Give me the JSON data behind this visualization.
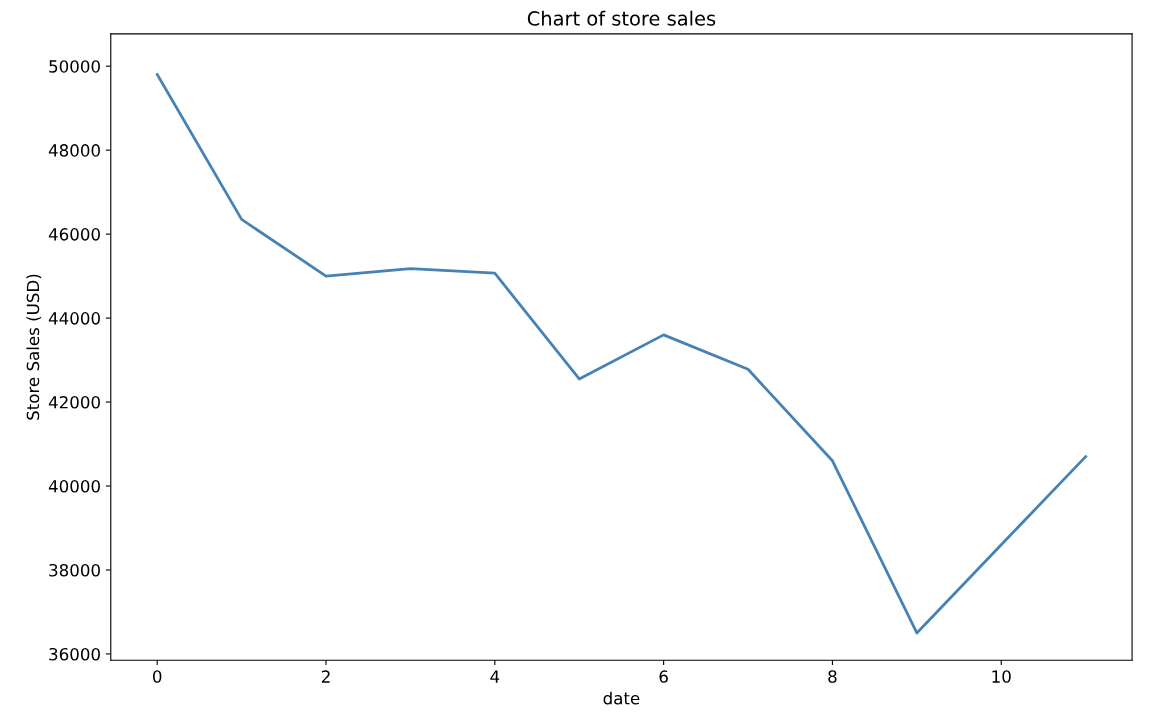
{
  "chart_data": {
    "type": "line",
    "title": "Chart of store sales",
    "xlabel": "date",
    "ylabel": "Store Sales (USD)",
    "x": [
      0,
      1,
      2,
      3,
      4,
      5,
      6,
      7,
      8,
      9,
      10,
      11
    ],
    "series": [
      {
        "color": "#4682b4",
        "values": [
          49800,
          46350,
          45000,
          45180,
          45070,
          42550,
          43600,
          42780,
          40600,
          36500,
          38600,
          40700
        ]
      }
    ],
    "xlim": [
      -0.55,
      11.55
    ],
    "xticks": [
      0,
      2,
      4,
      6,
      8,
      10
    ],
    "ylim": [
      35850,
      50770
    ],
    "yticks": [
      36000,
      38000,
      40000,
      42000,
      44000,
      46000,
      48000,
      50000
    ],
    "grid": false,
    "legend": false
  }
}
